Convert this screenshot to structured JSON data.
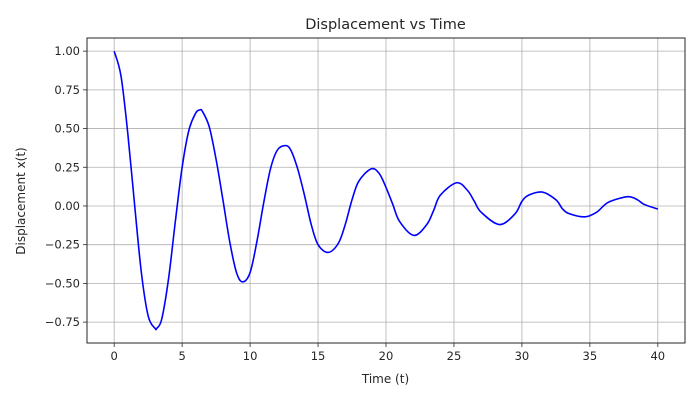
{
  "chart_data": {
    "type": "line",
    "title": "Displacement vs Time",
    "xlabel": "Time (t)",
    "ylabel": "Displacement x(t)",
    "xlim": [
      -2,
      42
    ],
    "ylim": [
      -0.885,
      1.085
    ],
    "xticks": [
      0,
      5,
      10,
      15,
      20,
      25,
      30,
      35,
      40
    ],
    "xtick_labels": [
      "0",
      "5",
      "10",
      "15",
      "20",
      "25",
      "30",
      "35",
      "40"
    ],
    "yticks": [
      -0.75,
      -0.5,
      -0.25,
      0.0,
      0.25,
      0.5,
      0.75,
      1.0
    ],
    "ytick_labels": [
      "−0.75",
      "−0.50",
      "−0.25",
      "0.00",
      "0.25",
      "0.50",
      "0.75",
      "1.00"
    ],
    "grid": true,
    "series": [
      {
        "color": "#0000ff",
        "x": [
          0,
          0.5,
          1,
          1.5,
          2,
          2.5,
          3,
          3.14,
          3.5,
          4,
          4.5,
          5,
          5.5,
          6,
          6.3,
          6.5,
          7,
          7.5,
          8,
          8.5,
          9,
          9.45,
          10,
          10.5,
          11,
          11.5,
          12,
          12.6,
          13,
          13.5,
          14,
          14.5,
          15,
          15.75,
          16.5,
          17,
          17.5,
          18,
          18.9,
          19.5,
          20,
          20.5,
          21,
          22.05,
          23,
          23.5,
          24,
          25.2,
          26,
          26.5,
          27,
          28.35,
          29.5,
          30,
          30.5,
          31.5,
          32.5,
          33,
          33.5,
          34.65,
          35.5,
          36,
          36.5,
          37.8,
          38.5,
          39,
          40
        ],
        "y": [
          1.0,
          0.84,
          0.47,
          0.01,
          -0.43,
          -0.71,
          -0.79,
          -0.79,
          -0.73,
          -0.47,
          -0.1,
          0.25,
          0.49,
          0.6,
          0.62,
          0.61,
          0.51,
          0.3,
          0.04,
          -0.23,
          -0.43,
          -0.49,
          -0.43,
          -0.23,
          0.02,
          0.24,
          0.36,
          0.39,
          0.36,
          0.24,
          0.07,
          -0.12,
          -0.25,
          -0.3,
          -0.24,
          -0.12,
          0.04,
          0.16,
          0.24,
          0.21,
          0.12,
          0.01,
          -0.1,
          -0.19,
          -0.12,
          -0.03,
          0.07,
          0.15,
          0.1,
          0.03,
          -0.04,
          -0.12,
          -0.05,
          0.03,
          0.07,
          0.09,
          0.04,
          -0.02,
          -0.05,
          -0.07,
          -0.04,
          0.0,
          0.03,
          0.06,
          0.04,
          0.01,
          -0.02
        ]
      }
    ]
  }
}
